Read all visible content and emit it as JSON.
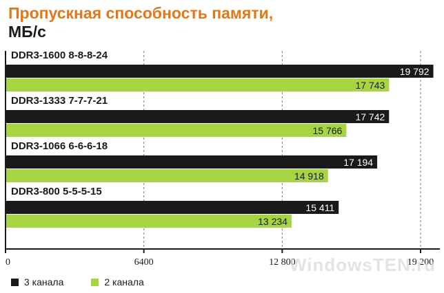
{
  "chart_data": {
    "type": "bar",
    "title": "Пропускная способность памяти,",
    "subtitle": "МБ/с",
    "categories": [
      "DDR3-1600 8-8-8-24",
      "DDR3-1333 7-7-7-21",
      "DDR3-1066 6-6-6-18",
      "DDR3-800 5-5-5-15"
    ],
    "series": [
      {
        "name": "3 канала",
        "color": "#1a1a1a",
        "values": [
          19792,
          17742,
          17194,
          15411
        ],
        "labels": [
          "19 792",
          "17 742",
          "17 194",
          "15 411"
        ]
      },
      {
        "name": "2 канала",
        "color": "#a6d443",
        "values": [
          17743,
          15766,
          14918,
          13234
        ],
        "labels": [
          "17 743",
          "15 766",
          "14 918",
          "13 234"
        ]
      }
    ],
    "xlim": [
      0,
      19200
    ],
    "xticks": [
      0,
      6400,
      12800,
      19200
    ],
    "xtick_labels": [
      "0",
      "6400",
      "12 800",
      "19 200"
    ],
    "grid": true,
    "legend_position": "bottom-left"
  },
  "watermark": "WindowsTEN.ru"
}
